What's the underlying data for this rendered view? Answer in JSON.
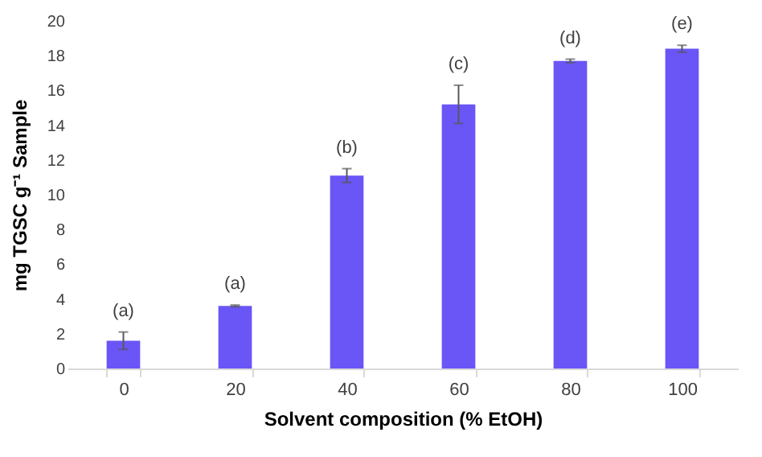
{
  "chart_data": {
    "type": "bar",
    "xlabel": "Solvent composition (% EtOH)",
    "ylabel": "mg TGSC g⁻¹ Sample",
    "categories": [
      "0",
      "20",
      "40",
      "60",
      "80",
      "100"
    ],
    "values": [
      1.6,
      3.6,
      11.1,
      15.2,
      17.7,
      18.4
    ],
    "errors": [
      0.5,
      0.05,
      0.4,
      1.1,
      0.1,
      0.2
    ],
    "color": "#6a55f7",
    "ylim": [
      0,
      20
    ],
    "yticks": [
      0,
      2,
      4,
      6,
      8,
      10,
      12,
      14,
      16,
      18,
      20
    ],
    "grid": false,
    "annotations": [
      {
        "text": "(a)",
        "x": "0",
        "y": 2.1
      },
      {
        "text": "(a)",
        "x": "20",
        "y": 3.65
      },
      {
        "text": "(b)",
        "x": "40",
        "y": 11.5
      },
      {
        "text": "(c)",
        "x": "60",
        "y": 16.3
      },
      {
        "text": "(d)",
        "x": "80",
        "y": 17.8
      },
      {
        "text": "(e)",
        "x": "100",
        "y": 18.6
      }
    ]
  }
}
